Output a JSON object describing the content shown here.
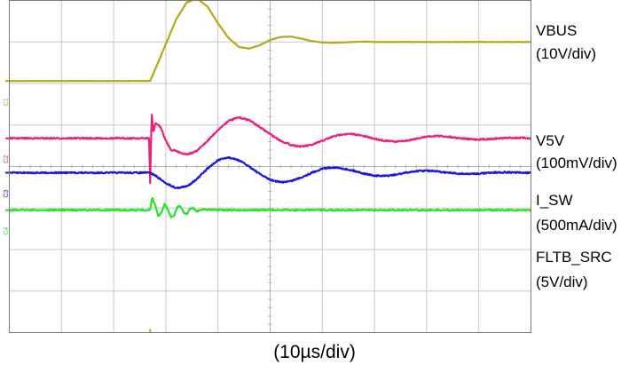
{
  "chart_data": {
    "type": "line",
    "title": "",
    "xlabel": "(10µs/div)",
    "ylabel": "",
    "xlim": [
      0,
      100
    ],
    "ylim": [
      0,
      8
    ],
    "grid": true,
    "grid_divisions": {
      "x": 10,
      "y": 8
    },
    "x_units": "µs",
    "y_units": "div",
    "trigger_time": 27,
    "series": [
      {
        "name": "VBUS",
        "scale": "(10V/div)",
        "channel": "C1",
        "color": "#b5a81c",
        "x": [
          0,
          27,
          28,
          30,
          32,
          34,
          36,
          38,
          40,
          42,
          44,
          46,
          48,
          50,
          52,
          54,
          56,
          58,
          60,
          62,
          64,
          66,
          68,
          70,
          75,
          80,
          90,
          100
        ],
        "values": [
          6.06,
          6.06,
          6.35,
          6.95,
          7.55,
          7.95,
          8.05,
          7.85,
          7.45,
          7.1,
          6.88,
          6.84,
          6.92,
          7.05,
          7.12,
          7.13,
          7.08,
          7.02,
          6.99,
          6.98,
          6.99,
          7.0,
          7.01,
          7.0,
          7.0,
          7.0,
          7.0,
          7.0
        ]
      },
      {
        "name": "V5V",
        "scale": "(100mV/div)",
        "channel": "C2",
        "color": "#e8237f",
        "x": [
          0,
          26.8,
          27.0,
          27.3,
          27.6,
          28,
          29,
          30,
          31,
          32,
          33,
          34,
          35,
          36,
          37,
          38,
          40,
          42,
          44,
          46,
          48,
          50,
          52,
          54,
          56,
          58,
          60,
          62,
          64,
          66,
          68,
          70,
          72,
          74,
          76,
          78,
          80,
          82,
          84,
          86,
          88,
          90,
          92,
          94,
          96,
          98,
          100
        ],
        "values": [
          4.68,
          4.68,
          3.6,
          5.3,
          4.8,
          5.05,
          4.95,
          4.62,
          4.4,
          4.38,
          4.32,
          4.3,
          4.32,
          4.38,
          4.5,
          4.62,
          4.88,
          5.1,
          5.18,
          5.12,
          4.95,
          4.78,
          4.62,
          4.52,
          4.48,
          4.52,
          4.62,
          4.72,
          4.78,
          4.78,
          4.73,
          4.67,
          4.62,
          4.6,
          4.62,
          4.67,
          4.72,
          4.74,
          4.72,
          4.69,
          4.66,
          4.65,
          4.66,
          4.68,
          4.69,
          4.69,
          4.68
        ]
      },
      {
        "name": "I_SW",
        "scale": "(500mA/div)",
        "channel": "C3",
        "color": "#1a1ad6",
        "x": [
          0,
          27,
          28,
          30,
          32,
          34,
          36,
          38,
          40,
          42,
          44,
          46,
          48,
          50,
          52,
          54,
          56,
          58,
          60,
          62,
          64,
          66,
          68,
          70,
          72,
          74,
          76,
          78,
          80,
          82,
          84,
          86,
          88,
          90,
          92,
          94,
          96,
          98,
          100
        ],
        "values": [
          3.85,
          3.85,
          3.78,
          3.6,
          3.48,
          3.52,
          3.7,
          3.95,
          4.15,
          4.22,
          4.15,
          4.0,
          3.82,
          3.68,
          3.62,
          3.65,
          3.74,
          3.85,
          3.95,
          3.98,
          3.95,
          3.9,
          3.83,
          3.78,
          3.77,
          3.8,
          3.85,
          3.89,
          3.9,
          3.88,
          3.85,
          3.83,
          3.82,
          3.83,
          3.85,
          3.86,
          3.86,
          3.85,
          3.85
        ]
      },
      {
        "name": "FLTB_SRC",
        "scale": "(5V/div)",
        "channel": "C4",
        "color": "#2de02d",
        "x": [
          0,
          27,
          27.4,
          28,
          28.6,
          29.2,
          29.8,
          30.4,
          31,
          31.6,
          32.2,
          32.8,
          33.4,
          34,
          34.6,
          35.2,
          35.8,
          36.4,
          37,
          38,
          40,
          45,
          50,
          60,
          70,
          80,
          90,
          100
        ],
        "values": [
          2.95,
          2.95,
          3.25,
          3.05,
          2.8,
          2.9,
          3.1,
          2.97,
          2.78,
          2.82,
          3.02,
          3.04,
          2.9,
          2.85,
          2.98,
          3.0,
          2.93,
          2.94,
          2.97,
          2.96,
          2.95,
          2.95,
          2.95,
          2.95,
          2.95,
          2.95,
          2.95,
          2.95
        ]
      }
    ]
  }
}
